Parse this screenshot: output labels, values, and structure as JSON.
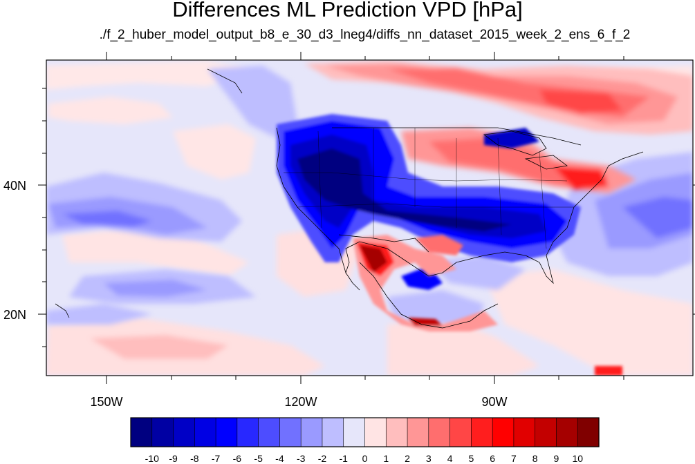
{
  "title": "Differences ML Prediction VPD [hPa]",
  "subtitle": "./f_2_huber_model_output_b8_e_30_d3_lneg4/diffs_nn_dataset_2015_week_2_ens_6_f_2",
  "map": {
    "lon_labels": [
      "150W",
      "120W",
      "90W"
    ],
    "lat_labels": [
      "40N",
      "20N"
    ]
  },
  "colorbar": {
    "levels": [
      "-10",
      "-9",
      "-8",
      "-7",
      "-6",
      "-5",
      "-4",
      "-3",
      "-2",
      "-1",
      "0",
      "1",
      "2",
      "3",
      "4",
      "5",
      "6",
      "7",
      "8",
      "9",
      "10"
    ],
    "colors": [
      "#000080",
      "#0000a3",
      "#0000c6",
      "#0000e4",
      "#0000ff",
      "#2828ff",
      "#4d4dff",
      "#7171ff",
      "#9a9aff",
      "#bebeff",
      "#e6e6fa",
      "#ffe4e4",
      "#ffbebe",
      "#ff9696",
      "#ff6e6e",
      "#ff4646",
      "#ff1e1e",
      "#ff0000",
      "#e10000",
      "#c30000",
      "#a50000",
      "#800000"
    ]
  }
}
